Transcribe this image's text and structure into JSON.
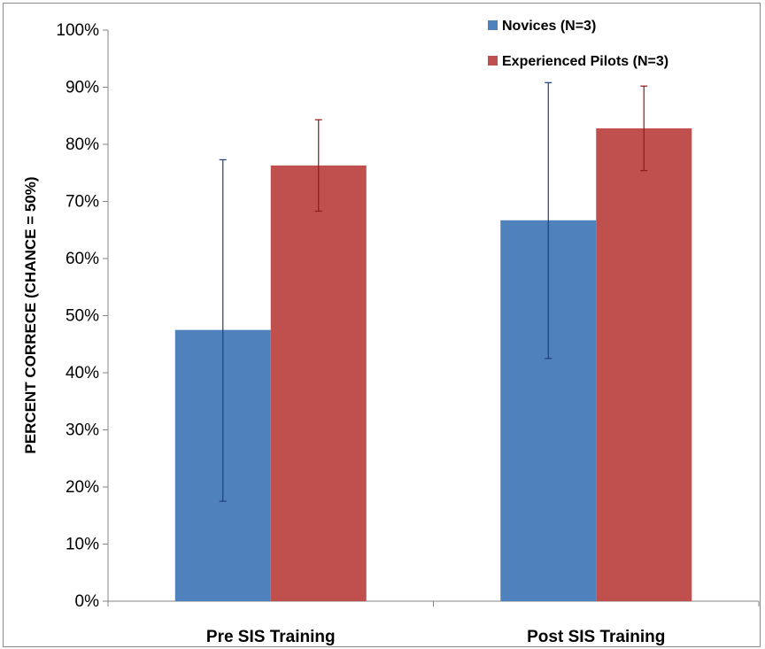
{
  "chart_data": {
    "type": "bar",
    "title": "",
    "xlabel": "",
    "ylabel": "PERCENT CORRECE (CHANCE = 50%)",
    "ylim": [
      0,
      100
    ],
    "y_ticks": [
      0,
      10,
      20,
      30,
      40,
      50,
      60,
      70,
      80,
      90,
      100
    ],
    "y_tick_labels": [
      "0%",
      "10%",
      "20%",
      "30%",
      "40%",
      "50%",
      "60%",
      "70%",
      "80%",
      "90%",
      "100%"
    ],
    "categories": [
      "Pre SIS Training",
      "Post SIS Training"
    ],
    "series": [
      {
        "name": "Novices (N=3)",
        "color": "#4F81BD",
        "error_color": "#1F3E7A",
        "values": [
          47.5,
          66.7
        ],
        "error_low": [
          17.5,
          42.5
        ],
        "error_high": [
          77.3,
          90.8
        ]
      },
      {
        "name": "Experienced Pilots (N=3)",
        "color": "#C0504D",
        "error_color": "#8B1A1A",
        "values": [
          76.3,
          82.8
        ],
        "error_low": [
          68.3,
          75.4
        ],
        "error_high": [
          84.3,
          90.2
        ]
      }
    ],
    "grid": false,
    "legend_position": "top-right"
  }
}
